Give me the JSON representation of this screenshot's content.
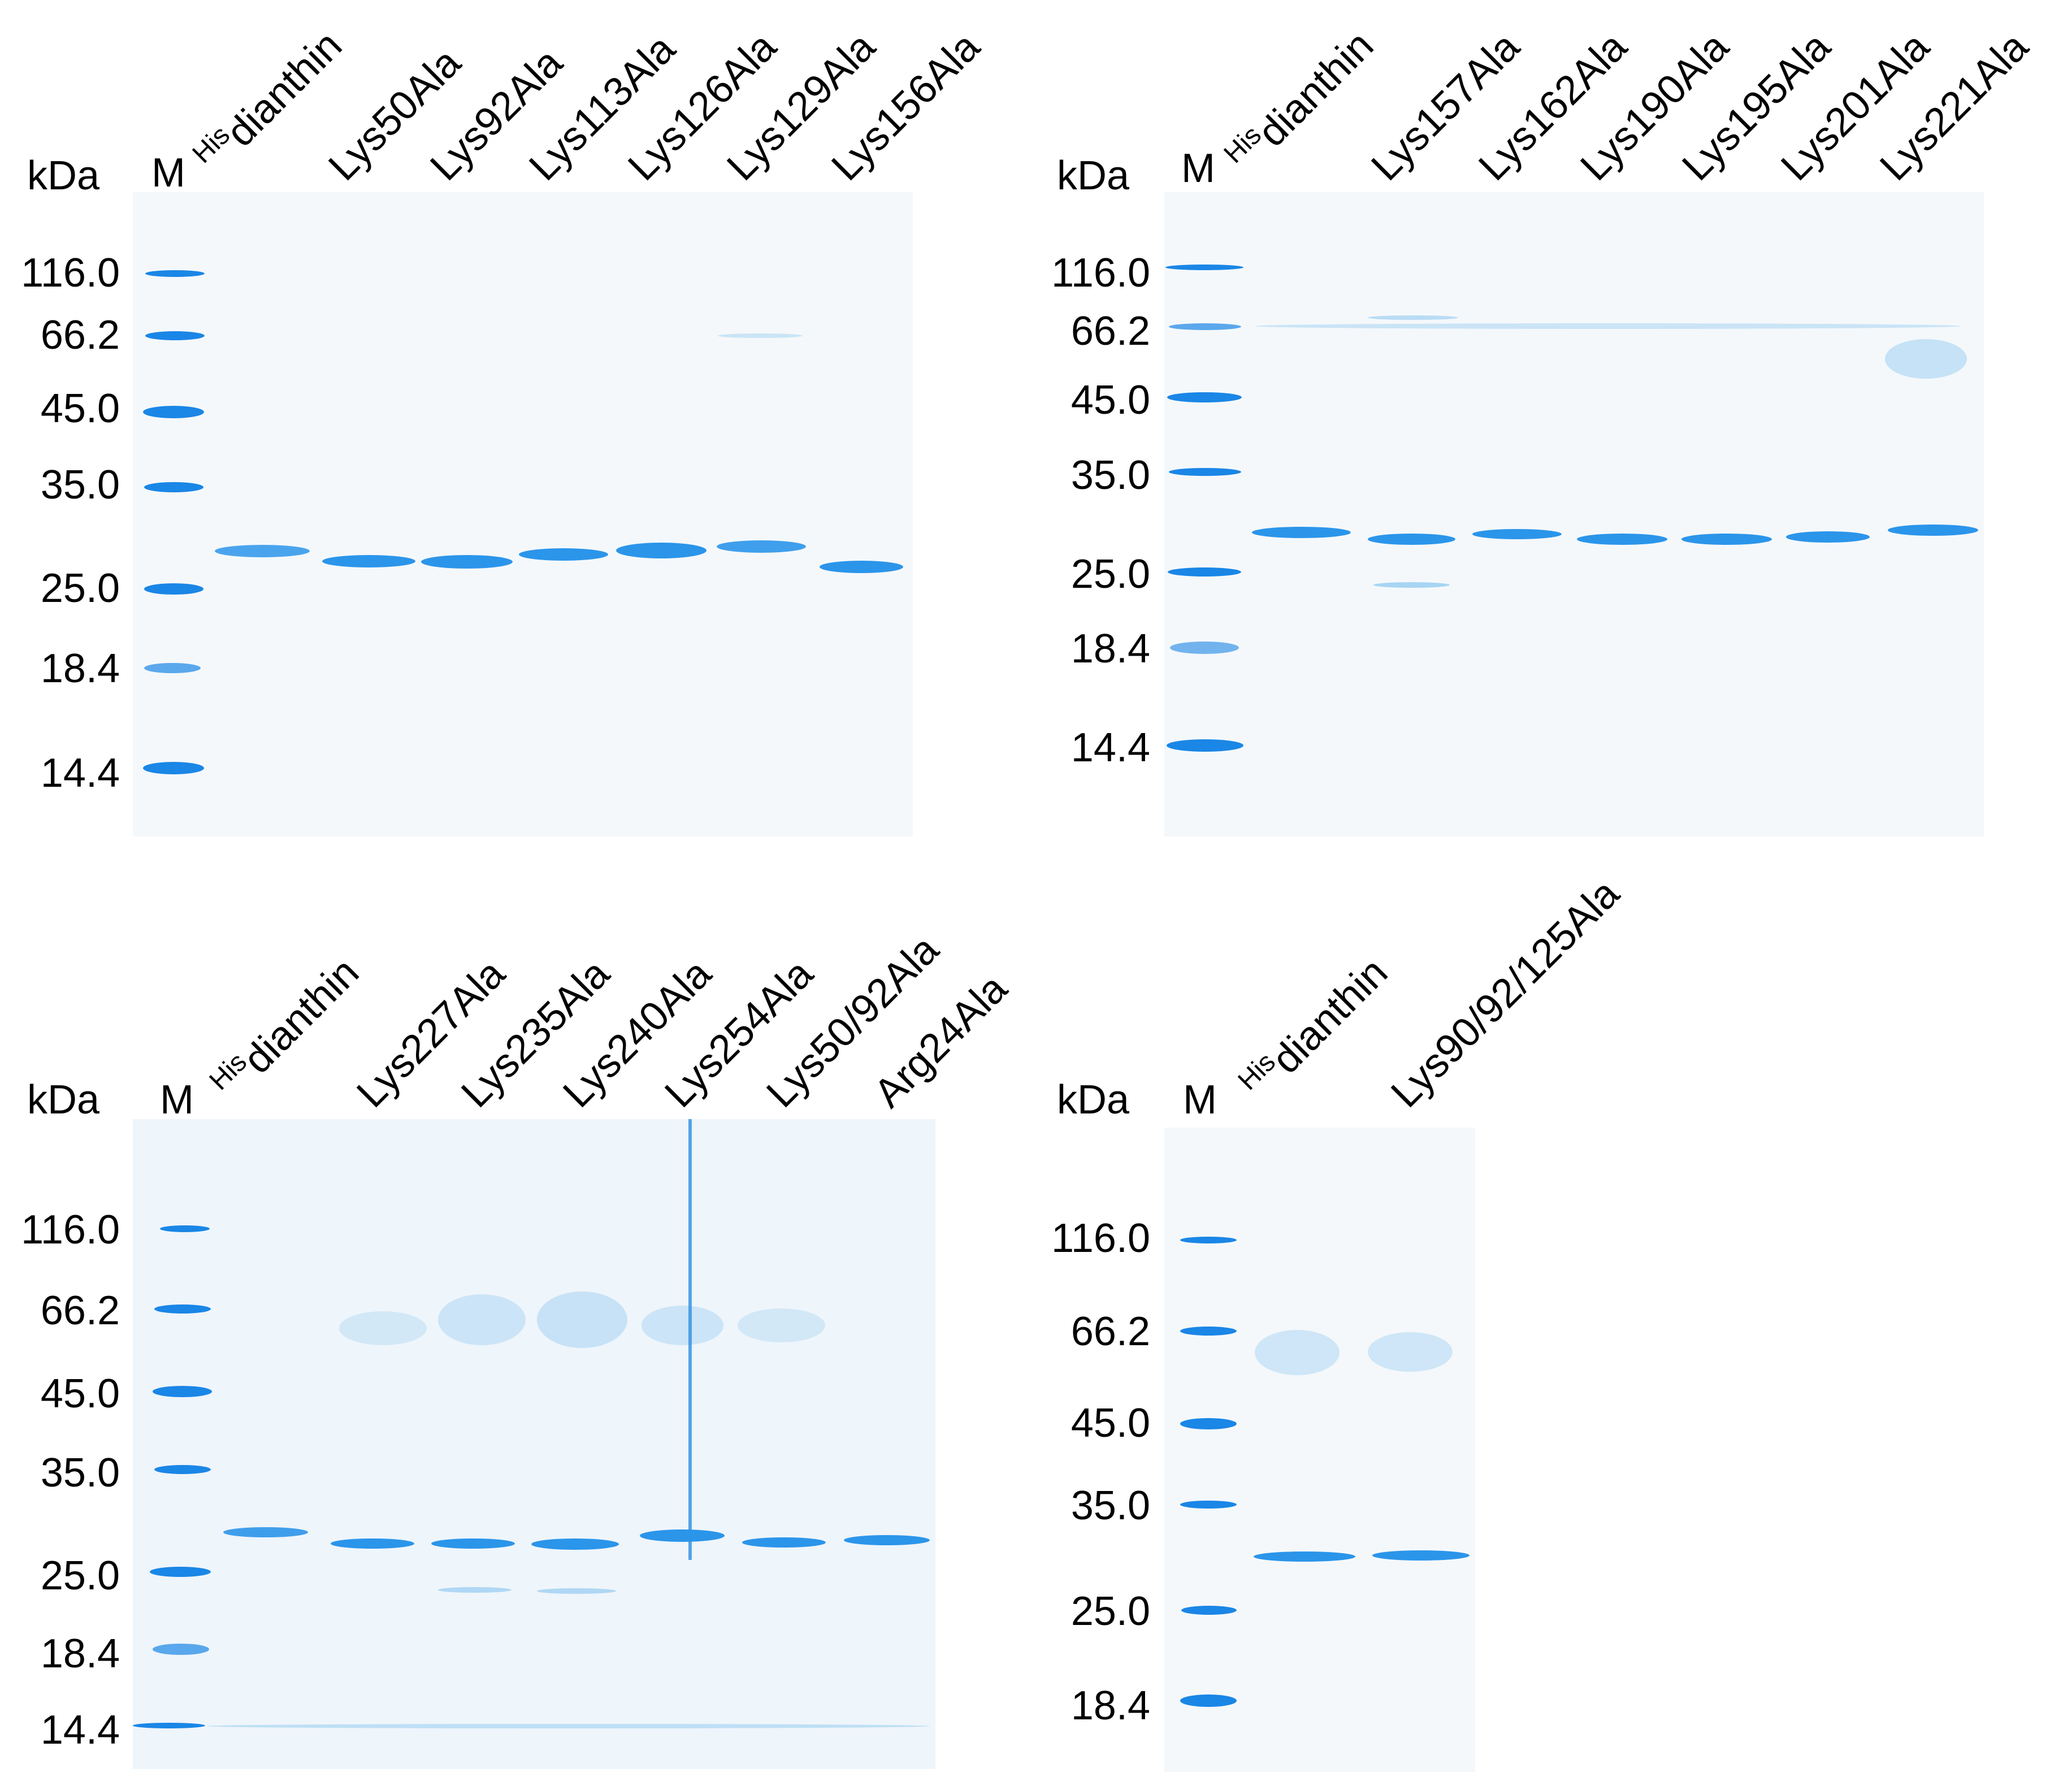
{
  "panels": [
    {
      "kda_label": "kDa",
      "marker_label": "M",
      "mw_markers": [
        "116.0",
        "66.2",
        "45.0",
        "35.0",
        "25.0",
        "18.4",
        "14.4"
      ],
      "lanes": [
        {
          "prefix": "His",
          "name": "dianthin"
        },
        {
          "prefix": "",
          "name": "Lys50Ala"
        },
        {
          "prefix": "",
          "name": "Lys92Ala"
        },
        {
          "prefix": "",
          "name": "Lys113Ala"
        },
        {
          "prefix": "",
          "name": "Lys126Ala"
        },
        {
          "prefix": "",
          "name": "Lys129Ala"
        },
        {
          "prefix": "",
          "name": "Lys156Ala"
        }
      ]
    },
    {
      "kda_label": "kDa",
      "marker_label": "M",
      "mw_markers": [
        "116.0",
        "66.2",
        "45.0",
        "35.0",
        "25.0",
        "18.4",
        "14.4"
      ],
      "lanes": [
        {
          "prefix": "His",
          "name": "dianthin"
        },
        {
          "prefix": "",
          "name": "Lys157Ala"
        },
        {
          "prefix": "",
          "name": "Lys162Ala"
        },
        {
          "prefix": "",
          "name": "Lys190Ala"
        },
        {
          "prefix": "",
          "name": "Lys195Ala"
        },
        {
          "prefix": "",
          "name": "Lys201Ala"
        },
        {
          "prefix": "",
          "name": "Lys221Ala"
        }
      ]
    },
    {
      "kda_label": "kDa",
      "marker_label": "M",
      "mw_markers": [
        "116.0",
        "66.2",
        "45.0",
        "35.0",
        "25.0",
        "18.4",
        "14.4"
      ],
      "lanes": [
        {
          "prefix": "His",
          "name": "dianthin"
        },
        {
          "prefix": "",
          "name": "Lys227Ala"
        },
        {
          "prefix": "",
          "name": "Lys235Ala"
        },
        {
          "prefix": "",
          "name": "Lys240Ala"
        },
        {
          "prefix": "",
          "name": "Lys254Ala"
        },
        {
          "prefix": "",
          "name": "Lys50/92Ala"
        },
        {
          "prefix": "",
          "name": "Arg24Ala"
        }
      ]
    },
    {
      "kda_label": "kDa",
      "marker_label": "M",
      "mw_markers": [
        "116.0",
        "66.2",
        "45.0",
        "35.0",
        "25.0",
        "18.4"
      ],
      "lanes": [
        {
          "prefix": "His",
          "name": "dianthin"
        },
        {
          "prefix": "",
          "name": "Lys90/92/125Ala"
        }
      ]
    }
  ]
}
